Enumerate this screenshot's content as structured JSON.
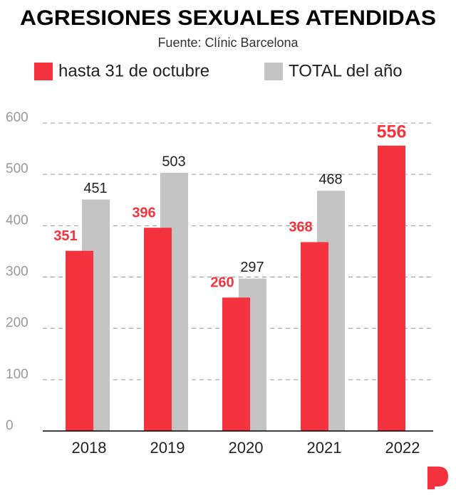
{
  "chart_data": {
    "type": "bar",
    "title": "AGRESIONES SEXUALES ATENDIDAS",
    "subtitle": "Fuente: Clínic Barcelona",
    "categories": [
      "2018",
      "2019",
      "2020",
      "2021",
      "2022"
    ],
    "series": [
      {
        "name": "hasta 31 de octubre",
        "color": "#f5333f",
        "values": [
          351,
          396,
          260,
          368,
          556
        ]
      },
      {
        "name": "TOTAL del año",
        "color": "#c4c4c4",
        "values": [
          451,
          503,
          297,
          468,
          null
        ]
      }
    ],
    "ylim": [
      0,
      600
    ],
    "yticks": [
      0,
      100,
      200,
      300,
      400,
      500,
      600
    ],
    "grid": true
  }
}
